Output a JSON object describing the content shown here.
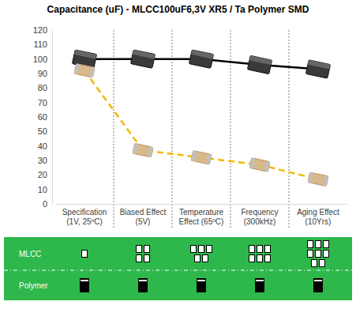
{
  "chart_data": {
    "type": "line",
    "title": "Capacitance (uF) - MLCC100uF6,3V XR5 / Ta Polymer SMD",
    "categories": [
      "Specification\n(1V, 25ºC)",
      "Biased Effect\n(5V)",
      "Temperature\nEffect (65ºC)",
      "Frequency\n(300kHz)",
      "Aging Effect\n(10Yrs)"
    ],
    "series": [
      {
        "name": "Polymer",
        "color": "#000000",
        "marker": "square",
        "line_style": "solid",
        "values": [
          100,
          100,
          100,
          96,
          93
        ],
        "count": [
          1,
          1,
          1,
          1,
          1
        ]
      },
      {
        "name": "MLCC",
        "color": "#f5b800",
        "marker": "square",
        "line_style": "dashed",
        "values": [
          92,
          37,
          32,
          27,
          17
        ],
        "count": [
          1,
          4,
          5,
          6,
          8
        ]
      }
    ],
    "ylim": [
      0,
      120
    ],
    "yticks": [
      0,
      10,
      20,
      30,
      40,
      50,
      60,
      70,
      80,
      90,
      100,
      110,
      120
    ]
  }
}
